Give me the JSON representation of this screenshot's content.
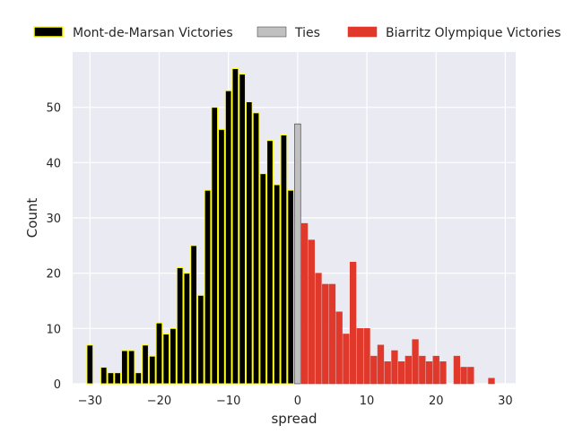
{
  "chart_data": {
    "type": "bar",
    "xlabel": "spread",
    "ylabel": "Count",
    "xlim": [
      -32.5,
      31.5
    ],
    "ylim": [
      0,
      60
    ],
    "grid": true,
    "background": "#eaeaf2",
    "legend_position": "top",
    "x_ticks": [
      -30,
      -20,
      -10,
      0,
      10,
      20,
      30
    ],
    "x_tick_labels": [
      "−30",
      "−20",
      "−10",
      "0",
      "10",
      "20",
      "30"
    ],
    "y_ticks": [
      0,
      10,
      20,
      30,
      40,
      50
    ],
    "y_tick_labels": [
      "0",
      "10",
      "20",
      "30",
      "40",
      "50"
    ],
    "series": [
      {
        "name": "Mont-de-Marsan Victories",
        "color": "#000000",
        "edgecolor": "#ffff00",
        "x": [
          -30,
          -28,
          -27,
          -26,
          -25,
          -24,
          -23,
          -22,
          -21,
          -20,
          -19,
          -18,
          -17,
          -16,
          -15,
          -14,
          -13,
          -12,
          -11,
          -10,
          -9,
          -8,
          -7,
          -6,
          -5,
          -4,
          -3,
          -2,
          -1
        ],
        "values": [
          7,
          3,
          2,
          2,
          6,
          6,
          2,
          7,
          5,
          11,
          9,
          10,
          21,
          20,
          25,
          16,
          35,
          50,
          46,
          53,
          57,
          56,
          51,
          49,
          38,
          44,
          36,
          45,
          35
        ]
      },
      {
        "name": "Ties",
        "color": "#c0c0c0",
        "edgecolor": "#333333",
        "x": [
          0
        ],
        "values": [
          47
        ]
      },
      {
        "name": "Biarritz Olympique Victories",
        "color": "#e0392b",
        "edgecolor": "#e0392b",
        "x": [
          1,
          2,
          3,
          4,
          5,
          6,
          7,
          8,
          9,
          10,
          11,
          12,
          13,
          14,
          15,
          16,
          17,
          18,
          19,
          20,
          21,
          23,
          24,
          25,
          28
        ],
        "values": [
          29,
          26,
          20,
          18,
          18,
          13,
          9,
          22,
          10,
          10,
          5,
          7,
          4,
          6,
          4,
          5,
          8,
          5,
          4,
          5,
          4,
          5,
          3,
          3,
          1
        ]
      }
    ]
  }
}
